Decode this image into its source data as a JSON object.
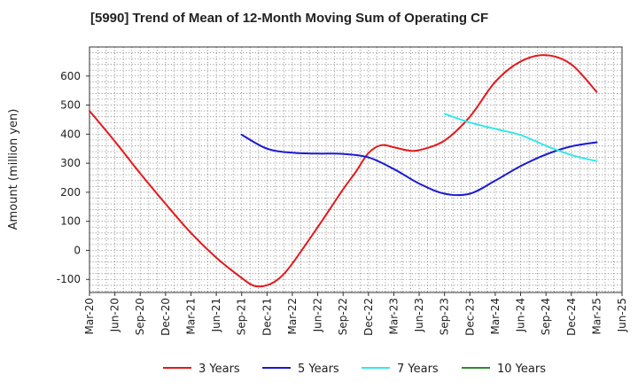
{
  "chart_data": {
    "type": "line",
    "title": "[5990]  Trend of Mean of 12-Month Moving Sum of Operating CF",
    "xlabel": "",
    "ylabel": "Amount (million yen)",
    "ylim": [
      -145,
      700
    ],
    "yticks": [
      -100,
      0,
      100,
      200,
      300,
      400,
      500,
      600
    ],
    "x_tick_labels": [
      "Mar-20",
      "Jun-20",
      "Sep-20",
      "Dec-20",
      "Mar-21",
      "Jun-21",
      "Sep-21",
      "Dec-21",
      "Mar-22",
      "Jun-22",
      "Sep-22",
      "Dec-22",
      "Mar-23",
      "Jun-23",
      "Sep-23",
      "Dec-23",
      "Mar-24",
      "Jun-24",
      "Sep-24",
      "Dec-24",
      "Mar-25",
      "Jun-25"
    ],
    "grid": true,
    "legend_position": "bottom",
    "series": [
      {
        "name": "3 Years",
        "color": "#e31a1c",
        "points": [
          [
            0,
            480
          ],
          [
            1,
            375
          ],
          [
            2,
            265
          ],
          [
            3,
            160
          ],
          [
            4,
            60
          ],
          [
            5,
            -25
          ],
          [
            6,
            -95
          ],
          [
            6.5,
            -122
          ],
          [
            7,
            -120
          ],
          [
            7.5,
            -95
          ],
          [
            8,
            -45
          ],
          [
            9,
            80
          ],
          [
            10,
            210
          ],
          [
            10.5,
            270
          ],
          [
            11,
            335
          ],
          [
            11.5,
            362
          ],
          [
            12,
            355
          ],
          [
            12.5,
            345
          ],
          [
            13,
            345
          ],
          [
            14,
            378
          ],
          [
            15,
            460
          ],
          [
            16,
            580
          ],
          [
            17,
            650
          ],
          [
            18,
            672
          ],
          [
            19,
            640
          ],
          [
            20,
            545
          ]
        ]
      },
      {
        "name": "5 Years",
        "color": "#1a1ad2",
        "points": [
          [
            6,
            398
          ],
          [
            7,
            350
          ],
          [
            8,
            336
          ],
          [
            9,
            333
          ],
          [
            10,
            332
          ],
          [
            11,
            320
          ],
          [
            12,
            280
          ],
          [
            13,
            230
          ],
          [
            14,
            195
          ],
          [
            15,
            195
          ],
          [
            16,
            240
          ],
          [
            17,
            290
          ],
          [
            18,
            330
          ],
          [
            19,
            358
          ],
          [
            20,
            372
          ]
        ]
      },
      {
        "name": "7 Years",
        "color": "#33e8ea",
        "points": [
          [
            14,
            470
          ],
          [
            15,
            440
          ],
          [
            16,
            418
          ],
          [
            17,
            397
          ],
          [
            18,
            360
          ],
          [
            19,
            328
          ],
          [
            20,
            307
          ]
        ]
      },
      {
        "name": "10 Years",
        "color": "#2e8b2e",
        "points": []
      }
    ]
  }
}
